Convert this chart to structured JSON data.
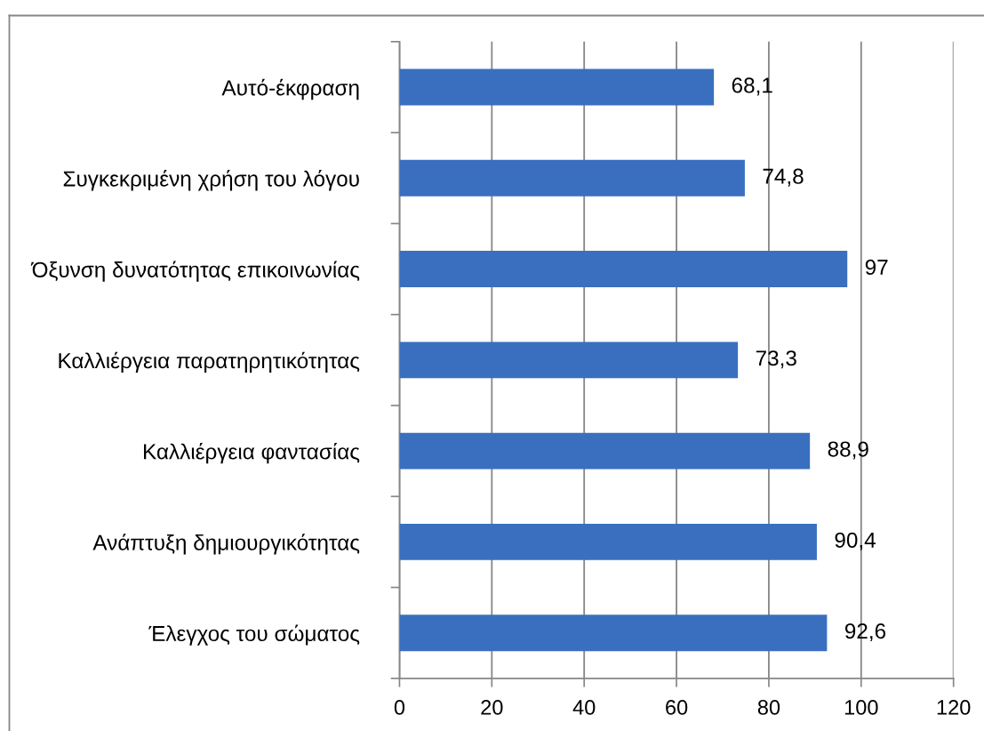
{
  "chart_data": {
    "type": "bar",
    "orientation": "horizontal",
    "categories": [
      "Αυτό-έκφραση",
      "Συγκεκριμένη χρήση του λόγου",
      "Όξυνση δυνατότητας επικοινωνίας",
      "Καλλιέργεια παρατηρητικότητας",
      "Καλλιέργεια φαντασίας",
      "Ανάπτυξη δημιουργικότητας",
      "Έλεγχος του σώματος"
    ],
    "values": [
      68.1,
      74.8,
      97,
      73.3,
      88.9,
      90.4,
      92.6
    ],
    "value_labels": [
      "68,1",
      "74,8",
      "97",
      "73,3",
      "88,9",
      "90,4",
      "92,6"
    ],
    "color": "#3a6fbf",
    "xlim": [
      0,
      120
    ],
    "xticks": [
      0,
      20,
      40,
      60,
      80,
      100,
      120
    ],
    "grid": "x"
  }
}
